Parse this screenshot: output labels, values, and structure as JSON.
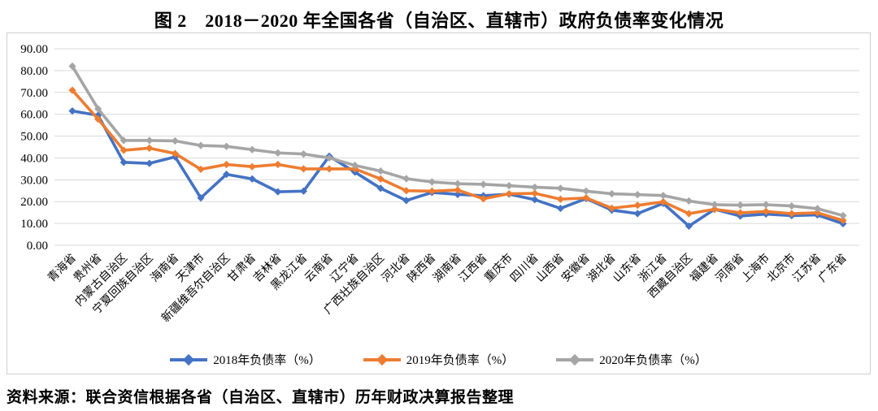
{
  "title": "图 2　2018－2020 年全国各省（自治区、直辖市）政府负债率变化情况",
  "source_note": "资料来源：联合资信根据各省（自治区、直辖市）历年财政决算报告整理",
  "chart_data": {
    "type": "line",
    "marker": "diamond",
    "grid": true,
    "legend_position": "bottom-center",
    "ylim": [
      0,
      90
    ],
    "ytick_step": 10,
    "ytick_labels": [
      "0.00",
      "10.00",
      "20.00",
      "30.00",
      "40.00",
      "50.00",
      "60.00",
      "70.00",
      "80.00",
      "90.00"
    ],
    "gridline_color": "#d9d9d9",
    "categories": [
      "青海省",
      "贵州省",
      "内蒙古自治区",
      "宁夏回族自治区",
      "海南省",
      "天津市",
      "新疆维吾尔自治区",
      "甘肃省",
      "吉林省",
      "黑龙江省",
      "云南省",
      "辽宁省",
      "广西壮族自治区",
      "河北省",
      "陕西省",
      "湖南省",
      "江西省",
      "重庆市",
      "四川省",
      "山西省",
      "安徽省",
      "湖北省",
      "山东省",
      "浙江省",
      "西藏自治区",
      "福建省",
      "河南省",
      "上海市",
      "北京市",
      "江苏省",
      "广东省"
    ],
    "series": [
      {
        "name": "2018年负债率（%）",
        "color": "#4472C4",
        "values": [
          61.5,
          59.5,
          38.0,
          37.5,
          40.5,
          21.7,
          32.5,
          30.4,
          24.5,
          24.8,
          40.8,
          33.5,
          26.1,
          20.5,
          24.2,
          23.3,
          22.7,
          23.4,
          20.9,
          16.9,
          21.4,
          16.1,
          14.5,
          19.2,
          8.8,
          16.5,
          13.4,
          14.3,
          13.6,
          13.9,
          9.9
        ]
      },
      {
        "name": "2019年负债率（%）",
        "color": "#ED7D31",
        "values": [
          71.0,
          57.8,
          43.5,
          44.5,
          42.0,
          34.8,
          37.0,
          36.0,
          37.0,
          35.0,
          35.0,
          35.0,
          30.4,
          25.0,
          24.8,
          25.3,
          21.3,
          23.6,
          23.8,
          21.1,
          21.7,
          17.0,
          18.3,
          19.9,
          14.5,
          16.5,
          14.9,
          15.5,
          14.5,
          14.9,
          11.4
        ]
      },
      {
        "name": "2020年负债率（%）",
        "color": "#A5A5A5",
        "values": [
          82.0,
          62.5,
          48.0,
          48.0,
          47.8,
          45.7,
          45.3,
          43.8,
          42.3,
          41.8,
          40.0,
          36.6,
          34.0,
          30.5,
          29.0,
          28.2,
          27.9,
          27.3,
          26.6,
          26.1,
          24.8,
          23.6,
          23.2,
          22.8,
          20.3,
          18.6,
          18.4,
          18.6,
          18.0,
          16.8,
          13.6
        ]
      }
    ]
  }
}
